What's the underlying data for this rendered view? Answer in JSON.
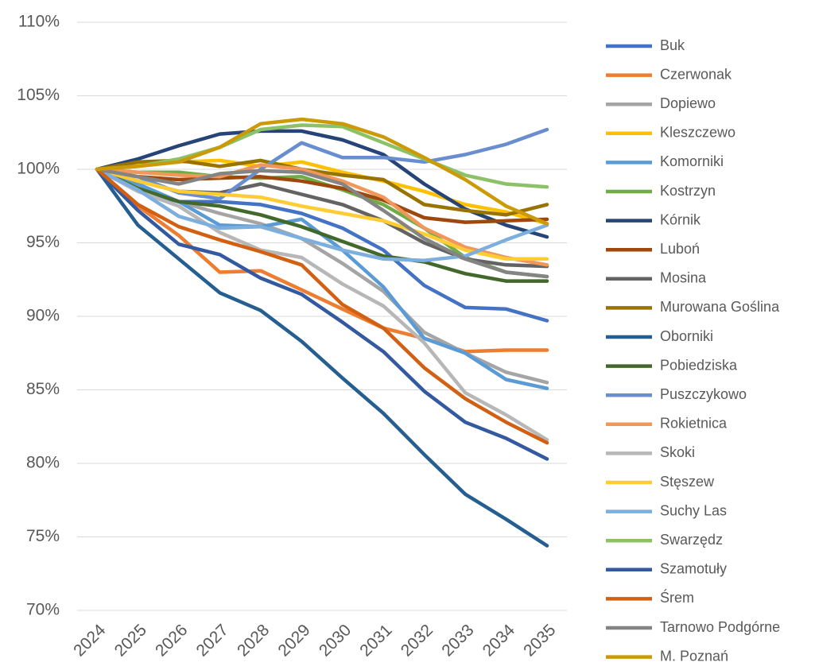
{
  "chart_data": {
    "type": "line",
    "categories": [
      "2024",
      "2025",
      "2026",
      "2027",
      "2028",
      "2029",
      "2030",
      "2031",
      "2032",
      "2033",
      "2034",
      "2035"
    ],
    "ylim": [
      70,
      110
    ],
    "yticks": [
      {
        "value": 70,
        "label": "70%"
      },
      {
        "value": 75,
        "label": "75%"
      },
      {
        "value": 80,
        "label": "80%"
      },
      {
        "value": 85,
        "label": "85%"
      },
      {
        "value": 90,
        "label": "90%"
      },
      {
        "value": 95,
        "label": "95%"
      },
      {
        "value": 100,
        "label": "100%"
      },
      {
        "value": 105,
        "label": "105%"
      },
      {
        "value": 110,
        "label": "110%"
      }
    ],
    "grid": true,
    "legend": "right",
    "series": [
      {
        "name": "Buk",
        "color": "#4472c4",
        "values": [
          100,
          98.5,
          97.8,
          97.8,
          97.6,
          97.0,
          96.0,
          94.5,
          92.1,
          90.6,
          90.5,
          89.7
        ]
      },
      {
        "name": "Czerwonak",
        "color": "#ed7d31",
        "values": [
          100,
          97.5,
          95.5,
          93.0,
          93.1,
          91.8,
          90.5,
          89.2,
          88.5,
          87.6,
          87.7,
          87.7
        ]
      },
      {
        "name": "Dopiewo",
        "color": "#a5a5a5",
        "values": [
          100,
          98.8,
          97.8,
          97.0,
          96.3,
          95.3,
          93.6,
          91.7,
          88.9,
          87.5,
          86.2,
          85.5
        ]
      },
      {
        "name": "Kleszczewo",
        "color": "#ffc000",
        "values": [
          100,
          100.3,
          100.5,
          100.6,
          100.2,
          100.5,
          99.8,
          99.2,
          98.5,
          97.6,
          97.1,
          96.3
        ]
      },
      {
        "name": "Komorniki",
        "color": "#5b9bd5",
        "values": [
          100,
          99.0,
          97.8,
          96.2,
          96.1,
          96.6,
          94.5,
          92.0,
          88.5,
          87.5,
          85.7,
          85.1
        ]
      },
      {
        "name": "Kostrzyn",
        "color": "#70ad47",
        "values": [
          100,
          99.8,
          99.8,
          99.5,
          99.4,
          99.5,
          98.6,
          97.6,
          96.0,
          94.0,
          93.0,
          92.7
        ]
      },
      {
        "name": "Kórnik",
        "color": "#264478",
        "values": [
          100,
          100.7,
          101.6,
          102.4,
          102.6,
          102.6,
          102.0,
          101.0,
          99.0,
          97.3,
          96.2,
          95.4
        ]
      },
      {
        "name": "Luboń",
        "color": "#9e480e",
        "values": [
          100,
          99.5,
          99.3,
          99.4,
          99.5,
          99.2,
          98.7,
          97.9,
          96.7,
          96.4,
          96.5,
          96.6
        ]
      },
      {
        "name": "Mosina",
        "color": "#636363",
        "values": [
          100,
          99.2,
          98.5,
          98.4,
          99.0,
          98.3,
          97.6,
          96.5,
          95.0,
          93.9,
          93.5,
          93.4
        ]
      },
      {
        "name": "Murowana Goślina",
        "color": "#997300",
        "values": [
          100,
          100.5,
          100.6,
          100.2,
          100.6,
          100.0,
          99.6,
          99.3,
          97.6,
          97.2,
          96.9,
          97.6
        ]
      },
      {
        "name": "Oborniki",
        "color": "#255e91",
        "values": [
          100,
          96.2,
          93.9,
          91.6,
          90.4,
          88.3,
          85.8,
          83.4,
          80.6,
          77.9,
          76.2,
          74.4
        ]
      },
      {
        "name": "Pobiedziska",
        "color": "#43682b",
        "values": [
          100,
          98.7,
          97.8,
          97.5,
          96.9,
          96.1,
          95.1,
          94.1,
          93.7,
          92.9,
          92.4,
          92.4
        ]
      },
      {
        "name": "Puszczykowo",
        "color": "#698ed0",
        "values": [
          100,
          99.5,
          98.4,
          98.0,
          100.0,
          101.8,
          100.8,
          100.8,
          100.5,
          101.0,
          101.7,
          102.7
        ]
      },
      {
        "name": "Rokietnica",
        "color": "#f1975a",
        "values": [
          100,
          99.8,
          99.6,
          99.5,
          100.3,
          100.0,
          99.2,
          98.1,
          96.0,
          94.7,
          94.0,
          93.5
        ]
      },
      {
        "name": "Skoki",
        "color": "#b7b7b7",
        "values": [
          100,
          98.5,
          97.5,
          95.7,
          94.5,
          94.0,
          92.2,
          90.7,
          88.2,
          84.8,
          83.3,
          81.6
        ]
      },
      {
        "name": "Stęszew",
        "color": "#ffcd33",
        "values": [
          100,
          99.2,
          98.5,
          98.3,
          98.1,
          97.5,
          97.0,
          96.5,
          95.6,
          94.5,
          93.9,
          93.9
        ]
      },
      {
        "name": "Suchy Las",
        "color": "#7cafdd",
        "values": [
          100,
          98.6,
          96.8,
          96.0,
          96.1,
          95.3,
          94.5,
          93.9,
          93.8,
          94.1,
          95.2,
          96.2
        ]
      },
      {
        "name": "Swarzędz",
        "color": "#8cc168",
        "values": [
          100,
          100.2,
          100.7,
          101.5,
          102.7,
          103.0,
          102.9,
          101.8,
          100.7,
          99.6,
          99.0,
          98.8
        ]
      },
      {
        "name": "Szamotuły",
        "color": "#335aa1",
        "values": [
          100,
          97.2,
          94.9,
          94.2,
          92.6,
          91.5,
          89.6,
          87.6,
          84.9,
          82.8,
          81.7,
          80.3
        ]
      },
      {
        "name": "Śrem",
        "color": "#d26012",
        "values": [
          100,
          97.6,
          96.1,
          95.2,
          94.4,
          93.5,
          90.8,
          89.2,
          86.5,
          84.4,
          82.8,
          81.4
        ]
      },
      {
        "name": "Tarnowo Podgórne",
        "color": "#848484",
        "values": [
          100,
          99.5,
          99.0,
          99.7,
          99.9,
          99.8,
          99.0,
          97.2,
          95.3,
          93.9,
          93.0,
          92.7
        ]
      },
      {
        "name": "M. Poznań",
        "color": "#cc9a06",
        "values": [
          100,
          100.2,
          100.5,
          101.5,
          103.1,
          103.4,
          103.1,
          102.2,
          100.8,
          99.3,
          97.5,
          96.3
        ]
      }
    ]
  }
}
